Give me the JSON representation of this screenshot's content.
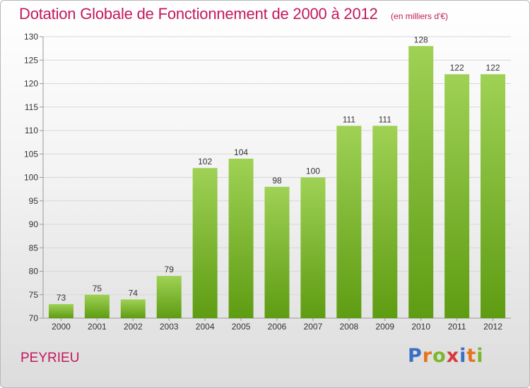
{
  "title": "Dotation Globale de Fonctionnement de 2000 à 2012",
  "unit": "(en milliers d'€)",
  "commune": "PEYRIEU",
  "brand": {
    "text": "Proxiti",
    "letter_colors": [
      "#3a6fc4",
      "#e8731c",
      "#7ab82b",
      "#d9363e",
      "#3a6fc4",
      "#e8731c",
      "#7ab82b"
    ]
  },
  "colors": {
    "bar_top": "#9fd155",
    "bar_bottom": "#5e9c12",
    "title": "#c2185b",
    "grid": "#d8d8d8",
    "axis": "#999999"
  },
  "chart_data": {
    "type": "bar",
    "title": "Dotation Globale de Fonctionnement de 2000 à 2012",
    "xlabel": "",
    "ylabel": "",
    "categories": [
      "2000",
      "2001",
      "2002",
      "2003",
      "2004",
      "2005",
      "2006",
      "2007",
      "2008",
      "2009",
      "2010",
      "2011",
      "2012"
    ],
    "values": [
      73,
      75,
      74,
      79,
      102,
      104,
      98,
      100,
      111,
      111,
      128,
      122,
      122
    ],
    "ylim": [
      70,
      130
    ],
    "yticks": [
      70,
      75,
      80,
      85,
      90,
      95,
      100,
      105,
      110,
      115,
      120,
      125,
      130
    ],
    "grid": true
  }
}
